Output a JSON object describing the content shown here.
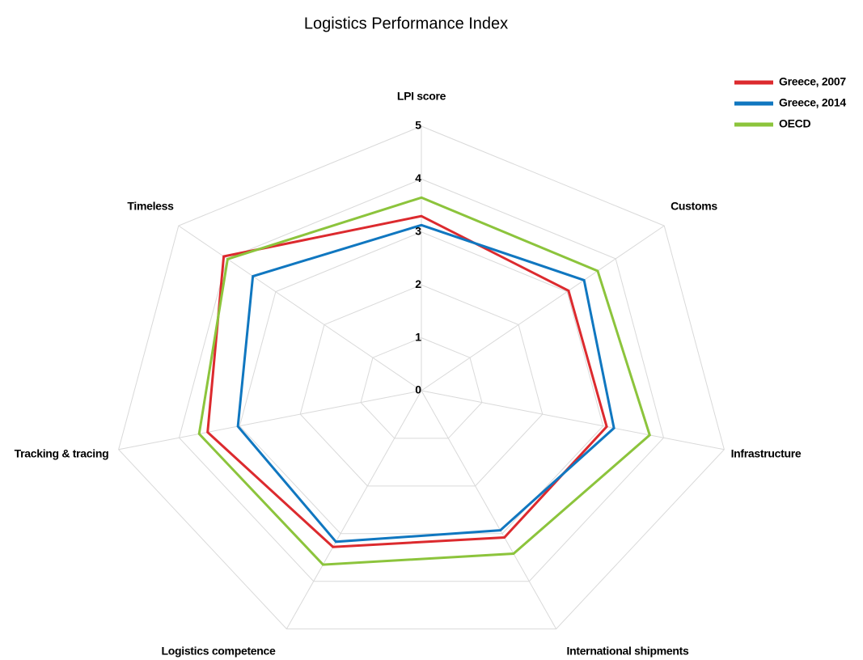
{
  "chart_data": {
    "type": "radar",
    "title": "Logistics Performance Index",
    "categories": [
      "LPI score",
      "Customs",
      "Infrastructure",
      "International shipments",
      "Logistics competence",
      "Tracking & tracing",
      "Timeless"
    ],
    "series": [
      {
        "name": "Greece, 2007",
        "color": "#dc2a2e",
        "values": [
          3.3,
          3.03,
          3.06,
          3.08,
          3.28,
          3.53,
          4.07
        ]
      },
      {
        "name": "Greece, 2014",
        "color": "#1077c0",
        "values": [
          3.13,
          3.35,
          3.18,
          2.93,
          3.17,
          3.03,
          3.47
        ]
      },
      {
        "name": "OECD",
        "color": "#8cc43c",
        "values": [
          3.65,
          3.63,
          3.77,
          3.42,
          3.65,
          3.67,
          3.99
        ]
      }
    ],
    "ylim": [
      0,
      5
    ],
    "yticks": [
      0,
      1,
      2,
      3,
      4,
      5
    ],
    "grid": true,
    "legend": "top-right"
  }
}
